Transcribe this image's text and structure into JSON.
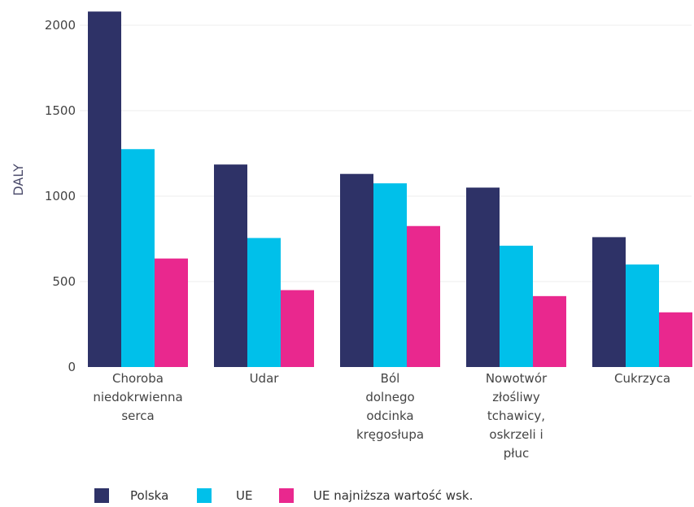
{
  "chart_data": {
    "type": "bar",
    "title": "",
    "xlabel": "",
    "ylabel": "DALY",
    "ylim": [
      0,
      2000
    ],
    "yticks": [
      0,
      500,
      1000,
      1500,
      2000
    ],
    "grid": true,
    "legend_position": "bottom-left",
    "categories": [
      [
        "Choroba",
        "niedokrwienna",
        "serca"
      ],
      [
        "Udar"
      ],
      [
        "Ból",
        "dolnego",
        "odcinka",
        "kręgosłupa"
      ],
      [
        "Nowotwór",
        "złośliwy",
        "tchawicy,",
        "oskrzeli i",
        "płuc"
      ],
      [
        "Cukrzyca"
      ]
    ],
    "series": [
      {
        "name": "Polska",
        "color": "#2e3267",
        "values": [
          2080,
          1185,
          1130,
          1050,
          760
        ]
      },
      {
        "name": "UE",
        "color": "#00c0ea",
        "values": [
          1275,
          755,
          1075,
          710,
          600
        ]
      },
      {
        "name": "UE najniższa wartość wsk.",
        "color": "#e9288e",
        "values": [
          635,
          450,
          825,
          415,
          320
        ]
      }
    ]
  }
}
